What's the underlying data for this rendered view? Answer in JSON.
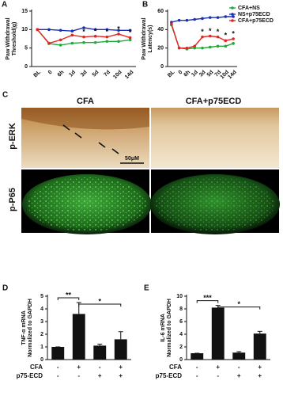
{
  "chart_data": [
    {
      "type": "line",
      "panel": "A",
      "y_label": [
        "Paw Withdrawal",
        "Threshold(g)"
      ],
      "categories": [
        "BL",
        "0",
        "6h",
        "1d",
        "3d",
        "5d",
        "7d",
        "10d",
        "14d"
      ],
      "ylim": [
        0,
        15
      ],
      "yticks": [
        0,
        5,
        10,
        15
      ],
      "series": [
        {
          "name": "CFA+NS",
          "color": "#1faa3a",
          "values": [
            10,
            6.2,
            5.8,
            6.3,
            6.5,
            6.5,
            6.8,
            6.8,
            7.2
          ]
        },
        {
          "name": "NS+p75ECD",
          "color": "#1a2fb8",
          "values": [
            10,
            10,
            9.8,
            9.6,
            10.5,
            10,
            10,
            9.8,
            9.8
          ]
        },
        {
          "name": "CFA+p75ECD",
          "color": "#e52420",
          "values": [
            10,
            6.3,
            7.2,
            8.5,
            8.0,
            8.2,
            8.0,
            8.8,
            7.8
          ]
        }
      ],
      "annotations": [
        {
          "category": "3d",
          "label": "*"
        },
        {
          "category": "5d",
          "label": "*"
        },
        {
          "category": "7d",
          "label": "*"
        },
        {
          "category": "10d",
          "label": "*"
        },
        {
          "category": "14d",
          "label": "*"
        }
      ]
    },
    {
      "type": "line",
      "panel": "B",
      "y_label": [
        "Paw Withdrawal",
        "Latency(s)"
      ],
      "categories": [
        "BL",
        "0",
        "6h",
        "1d",
        "3d",
        "5d",
        "7d",
        "10d",
        "14d"
      ],
      "ylim": [
        0,
        60
      ],
      "yticks": [
        0,
        20,
        40,
        60
      ],
      "legend": "upper right",
      "series": [
        {
          "name": "CFA+NS",
          "color": "#1faa3a",
          "values": [
            45,
            20,
            19,
            20,
            20,
            21,
            22,
            22,
            25
          ]
        },
        {
          "name": "NS+p75ECD",
          "color": "#1a2fb8",
          "values": [
            48,
            50,
            50,
            51,
            52,
            53,
            53,
            54,
            54
          ]
        },
        {
          "name": "CFA+p75ECD",
          "color": "#e52420",
          "values": [
            46,
            20,
            20,
            22,
            32,
            33,
            32,
            28,
            30
          ]
        }
      ],
      "annotations": [
        {
          "category": "3d",
          "label": "*"
        },
        {
          "category": "5d",
          "label": "*"
        },
        {
          "category": "7d",
          "label": "*"
        },
        {
          "category": "10d",
          "label": "*"
        },
        {
          "category": "14d",
          "label": "*"
        }
      ]
    },
    {
      "type": "bar",
      "panel": "D",
      "y_label": [
        "TNF-α mRNA",
        "Normalized to GAPDH"
      ],
      "ylim": [
        0,
        5
      ],
      "yticks": [
        0,
        1,
        2,
        3,
        4,
        5
      ],
      "color": "#111111",
      "values": [
        1,
        3.6,
        1.1,
        1.6
      ],
      "errors": [
        0,
        0.9,
        0.12,
        0.6
      ],
      "significance": [
        "**",
        "*"
      ],
      "conditions": [
        {
          "name": "CFA",
          "levels": [
            "-",
            "+",
            "-",
            "+"
          ]
        },
        {
          "name": "p75-ECD",
          "levels": [
            "-",
            "-",
            "+",
            "+"
          ]
        }
      ]
    },
    {
      "type": "bar",
      "panel": "E",
      "y_label": [
        "IL-6 mRNA",
        "Normalized to GAPDH"
      ],
      "ylim": [
        0,
        10
      ],
      "yticks": [
        0,
        2,
        4,
        6,
        8,
        10
      ],
      "color": "#111111",
      "values": [
        1,
        8.2,
        1.1,
        4.1
      ],
      "errors": [
        0,
        0.35,
        0.15,
        0.35
      ],
      "significance": [
        "***",
        "*"
      ],
      "conditions": [
        {
          "name": "CFA",
          "levels": [
            "-",
            "+",
            "-",
            "+"
          ]
        },
        {
          "name": "p75-ECD",
          "levels": [
            "-",
            "-",
            "+",
            "+"
          ]
        }
      ]
    }
  ],
  "images_panel": {
    "panel": "C",
    "columns": [
      "CFA",
      "CFA+p75ECD"
    ],
    "rows": [
      "p-ERK",
      "p-P65"
    ],
    "scale_bar": "50μM"
  }
}
